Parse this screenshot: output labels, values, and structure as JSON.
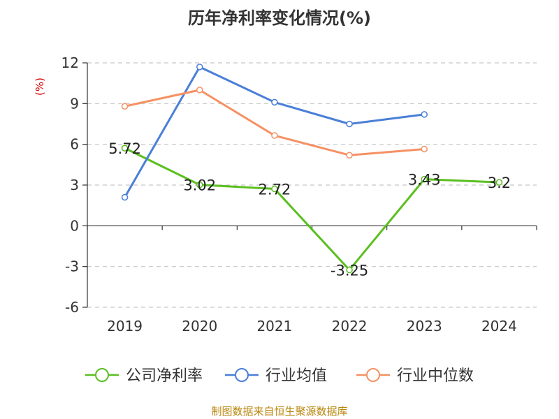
{
  "title": "历年净利率变化情况(%)",
  "source": "制图数据来自恒生聚源数据库",
  "chart_data": {
    "type": "line",
    "title": "历年净利率变化情况(%)",
    "ylabel": "(%)",
    "categories": [
      "2019",
      "2020",
      "2021",
      "2022",
      "2023",
      "2024"
    ],
    "ylim": [
      -6,
      12
    ],
    "yticks": [
      12,
      9,
      6,
      3,
      0,
      -3,
      -6
    ],
    "grid": true,
    "legend_position": "bottom",
    "series": [
      {
        "name": "公司净利率",
        "color": "#5bbf20",
        "values": [
          5.72,
          3.02,
          2.72,
          -3.25,
          3.43,
          3.2
        ],
        "labels": [
          "5.72",
          "3.02",
          "2.72",
          "-3.25",
          "3.43",
          "3.2"
        ]
      },
      {
        "name": "行业均值",
        "color": "#4a7fd8",
        "values": [
          2.1,
          11.7,
          9.1,
          7.5,
          8.2,
          null
        ]
      },
      {
        "name": "行业中位数",
        "color": "#f59163",
        "values": [
          8.8,
          10.0,
          6.65,
          5.2,
          5.65,
          null
        ]
      }
    ]
  }
}
